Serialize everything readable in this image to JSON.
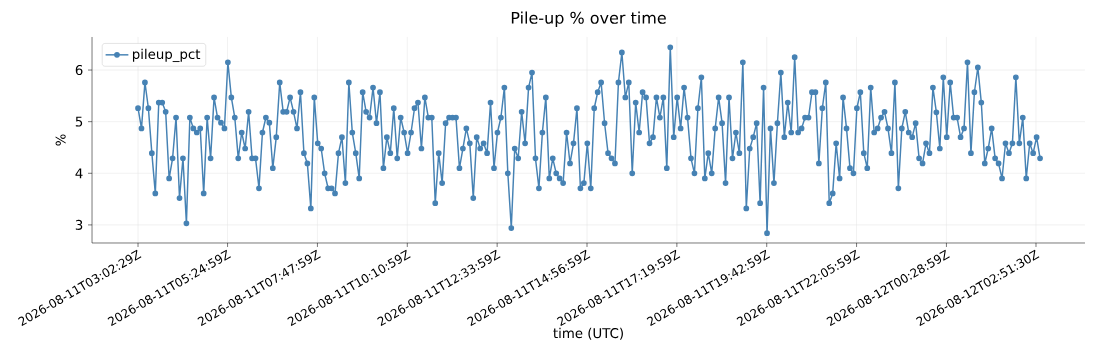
{
  "chart_data": {
    "type": "line",
    "title": "Pile-up % over time",
    "xlabel": "time (UTC)",
    "ylabel": "%",
    "x": [
      "2026-08-11T03:02:29",
      "2026-08-11T03:07:59",
      "2026-08-11T03:13:29",
      "2026-08-11T03:18:59",
      "2026-08-11T03:24:29",
      "2026-08-11T03:29:59",
      "2026-08-11T03:35:29",
      "2026-08-11T03:40:59",
      "2026-08-11T03:46:29",
      "2026-08-11T03:51:59",
      "2026-08-11T03:57:29",
      "2026-08-11T04:02:59",
      "2026-08-11T04:08:29",
      "2026-08-11T04:13:59",
      "2026-08-11T04:19:29",
      "2026-08-11T04:24:59",
      "2026-08-11T04:30:29",
      "2026-08-11T04:35:59",
      "2026-08-11T04:41:29",
      "2026-08-11T04:46:59",
      "2026-08-11T04:52:29",
      "2026-08-11T04:57:59",
      "2026-08-11T05:03:29",
      "2026-08-11T05:08:59",
      "2026-08-11T05:14:29",
      "2026-08-11T05:19:59",
      "2026-08-11T05:25:29",
      "2026-08-11T05:30:59",
      "2026-08-11T05:36:29",
      "2026-08-11T05:41:59",
      "2026-08-11T05:47:29",
      "2026-08-11T05:52:59",
      "2026-08-11T05:58:29",
      "2026-08-11T06:03:59",
      "2026-08-11T06:09:29",
      "2026-08-11T06:14:59",
      "2026-08-11T06:20:29",
      "2026-08-11T06:25:59",
      "2026-08-11T06:31:29",
      "2026-08-11T06:36:59",
      "2026-08-11T06:42:29",
      "2026-08-11T06:47:59",
      "2026-08-11T06:53:29",
      "2026-08-11T06:58:59",
      "2026-08-11T07:04:29",
      "2026-08-11T07:09:59",
      "2026-08-11T07:15:29",
      "2026-08-11T07:20:59",
      "2026-08-11T07:26:29",
      "2026-08-11T07:31:59",
      "2026-08-11T07:37:29",
      "2026-08-11T07:42:59",
      "2026-08-11T07:48:29",
      "2026-08-11T07:53:59",
      "2026-08-11T07:59:29",
      "2026-08-11T08:04:59",
      "2026-08-11T08:10:29",
      "2026-08-11T08:15:59",
      "2026-08-11T08:21:29",
      "2026-08-11T08:26:59",
      "2026-08-11T08:32:29",
      "2026-08-11T08:37:59",
      "2026-08-11T08:43:29",
      "2026-08-11T08:48:59",
      "2026-08-11T08:54:29",
      "2026-08-11T08:59:59",
      "2026-08-11T09:05:29",
      "2026-08-11T09:10:59",
      "2026-08-11T09:16:29",
      "2026-08-11T09:21:59",
      "2026-08-11T09:27:29",
      "2026-08-11T09:32:59",
      "2026-08-11T09:38:29",
      "2026-08-11T09:43:59",
      "2026-08-11T09:49:29",
      "2026-08-11T09:54:59",
      "2026-08-11T10:00:29",
      "2026-08-11T10:05:59",
      "2026-08-11T10:11:29",
      "2026-08-11T10:16:59",
      "2026-08-11T10:22:29",
      "2026-08-11T10:27:59",
      "2026-08-11T10:33:29",
      "2026-08-11T10:38:59",
      "2026-08-11T10:44:29",
      "2026-08-11T10:49:59",
      "2026-08-11T10:55:29",
      "2026-08-11T11:00:59",
      "2026-08-11T11:06:29",
      "2026-08-11T11:11:59",
      "2026-08-11T11:17:29",
      "2026-08-11T11:22:59",
      "2026-08-11T11:28:29",
      "2026-08-11T11:33:59",
      "2026-08-11T11:39:29",
      "2026-08-11T11:44:59",
      "2026-08-11T11:50:29",
      "2026-08-11T11:55:59",
      "2026-08-11T12:01:29",
      "2026-08-11T12:06:59",
      "2026-08-11T12:12:29",
      "2026-08-11T12:17:59",
      "2026-08-11T12:23:29",
      "2026-08-11T12:28:59",
      "2026-08-11T12:34:29",
      "2026-08-11T12:39:59",
      "2026-08-11T12:45:29",
      "2026-08-11T12:50:59",
      "2026-08-11T12:56:29",
      "2026-08-11T13:01:59",
      "2026-08-11T13:07:29",
      "2026-08-11T13:12:59",
      "2026-08-11T13:18:29",
      "2026-08-11T13:23:59",
      "2026-08-11T13:29:29",
      "2026-08-11T13:34:59",
      "2026-08-11T13:40:29",
      "2026-08-11T13:45:59",
      "2026-08-11T13:51:29",
      "2026-08-11T13:56:59",
      "2026-08-11T14:02:29",
      "2026-08-11T14:07:59",
      "2026-08-11T14:13:29",
      "2026-08-11T14:18:59",
      "2026-08-11T14:24:29",
      "2026-08-11T14:29:59",
      "2026-08-11T14:35:29",
      "2026-08-11T14:40:59",
      "2026-08-11T14:46:29",
      "2026-08-11T14:51:59",
      "2026-08-11T14:57:29",
      "2026-08-11T15:02:59",
      "2026-08-11T15:08:29",
      "2026-08-11T15:13:59",
      "2026-08-11T15:19:29",
      "2026-08-11T15:24:59",
      "2026-08-11T15:30:29",
      "2026-08-11T15:35:59",
      "2026-08-11T15:41:29",
      "2026-08-11T15:46:59",
      "2026-08-11T15:52:29",
      "2026-08-11T15:57:59",
      "2026-08-11T16:03:29",
      "2026-08-11T16:08:59",
      "2026-08-11T16:14:29",
      "2026-08-11T16:19:59",
      "2026-08-11T16:25:29",
      "2026-08-11T16:30:59",
      "2026-08-11T16:36:29",
      "2026-08-11T16:41:59",
      "2026-08-11T16:47:29",
      "2026-08-11T16:52:59",
      "2026-08-11T16:58:29",
      "2026-08-11T17:03:59",
      "2026-08-11T17:09:29",
      "2026-08-11T17:14:59",
      "2026-08-11T17:20:29",
      "2026-08-11T17:25:59",
      "2026-08-11T17:31:29",
      "2026-08-11T17:36:59",
      "2026-08-11T17:42:29",
      "2026-08-11T17:47:59",
      "2026-08-11T17:53:29",
      "2026-08-11T17:58:59",
      "2026-08-11T18:04:29",
      "2026-08-11T18:09:59",
      "2026-08-11T18:15:29",
      "2026-08-11T18:20:59",
      "2026-08-11T18:26:29",
      "2026-08-11T18:31:59",
      "2026-08-11T18:37:29",
      "2026-08-11T18:42:59",
      "2026-08-11T18:48:29",
      "2026-08-11T18:53:59",
      "2026-08-11T18:59:29",
      "2026-08-11T19:04:59",
      "2026-08-11T19:10:29",
      "2026-08-11T19:15:59",
      "2026-08-11T19:21:29",
      "2026-08-11T19:26:59",
      "2026-08-11T19:32:29",
      "2026-08-11T19:37:59",
      "2026-08-11T19:43:29",
      "2026-08-11T19:48:59",
      "2026-08-11T19:54:29",
      "2026-08-11T19:59:59",
      "2026-08-11T20:05:29",
      "2026-08-11T20:10:59",
      "2026-08-11T20:16:29",
      "2026-08-11T20:21:59",
      "2026-08-11T20:27:29",
      "2026-08-11T20:32:59",
      "2026-08-11T20:38:29",
      "2026-08-11T20:43:59",
      "2026-08-11T20:49:29",
      "2026-08-11T20:54:59",
      "2026-08-11T21:00:29",
      "2026-08-11T21:05:59",
      "2026-08-11T21:11:29",
      "2026-08-11T21:16:59",
      "2026-08-11T21:22:29",
      "2026-08-11T21:27:59",
      "2026-08-11T21:33:29",
      "2026-08-11T21:38:59",
      "2026-08-11T21:44:29",
      "2026-08-11T21:49:59",
      "2026-08-11T21:55:29",
      "2026-08-11T22:00:59",
      "2026-08-11T22:06:29",
      "2026-08-11T22:11:59",
      "2026-08-11T22:17:29",
      "2026-08-11T22:22:59",
      "2026-08-11T22:28:29",
      "2026-08-11T22:33:59",
      "2026-08-11T22:39:29",
      "2026-08-11T22:44:59",
      "2026-08-11T22:50:29",
      "2026-08-11T22:55:59",
      "2026-08-11T23:01:29",
      "2026-08-11T23:06:59",
      "2026-08-11T23:12:29",
      "2026-08-11T23:17:59",
      "2026-08-11T23:23:29",
      "2026-08-11T23:28:59",
      "2026-08-11T23:34:29",
      "2026-08-11T23:39:59",
      "2026-08-11T23:45:29",
      "2026-08-11T23:50:59",
      "2026-08-11T23:56:29",
      "2026-08-12T00:01:59",
      "2026-08-12T00:07:29",
      "2026-08-12T00:12:59",
      "2026-08-12T00:18:29",
      "2026-08-12T00:23:59",
      "2026-08-12T00:29:29",
      "2026-08-12T00:34:59",
      "2026-08-12T00:40:29",
      "2026-08-12T00:45:59",
      "2026-08-12T00:51:29",
      "2026-08-12T00:56:59",
      "2026-08-12T01:02:29",
      "2026-08-12T01:07:59",
      "2026-08-12T01:13:29",
      "2026-08-12T01:18:59",
      "2026-08-12T01:24:29",
      "2026-08-12T01:29:59",
      "2026-08-12T01:35:29",
      "2026-08-12T01:40:59",
      "2026-08-12T01:46:29",
      "2026-08-12T01:51:59",
      "2026-08-12T01:57:29",
      "2026-08-12T02:02:59",
      "2026-08-12T02:08:29",
      "2026-08-12T02:13:59",
      "2026-08-12T02:19:29",
      "2026-08-12T02:24:59",
      "2026-08-12T02:30:29",
      "2026-08-12T02:35:59",
      "2026-08-12T02:41:29",
      "2026-08-12T02:46:59",
      "2026-08-12T02:52:29",
      "2026-08-12T02:57:59"
    ],
    "series": [
      {
        "name": "pileup_pct",
        "color": "#4682b4",
        "values": [
          5.26,
          4.87,
          5.76,
          5.26,
          4.39,
          3.61,
          5.37,
          5.37,
          5.19,
          3.9,
          4.29,
          5.08,
          3.52,
          4.29,
          3.03,
          5.08,
          4.87,
          4.79,
          4.87,
          3.61,
          5.08,
          4.29,
          5.47,
          5.08,
          4.98,
          4.87,
          6.15,
          5.47,
          5.08,
          4.29,
          4.79,
          4.48,
          5.19,
          4.29,
          4.29,
          3.71,
          4.79,
          5.08,
          4.98,
          4.1,
          4.7,
          5.76,
          5.19,
          5.19,
          5.47,
          5.19,
          4.87,
          5.57,
          4.39,
          4.19,
          3.32,
          5.47,
          4.58,
          4.48,
          4.0,
          3.71,
          3.71,
          3.61,
          4.39,
          4.7,
          3.81,
          5.76,
          4.79,
          4.39,
          3.9,
          5.57,
          5.19,
          5.08,
          5.66,
          4.97,
          5.57,
          4.1,
          4.7,
          4.39,
          5.26,
          4.29,
          5.08,
          4.79,
          4.39,
          4.79,
          5.26,
          5.37,
          4.48,
          5.47,
          5.08,
          5.08,
          3.42,
          4.39,
          3.81,
          4.97,
          5.08,
          5.08,
          5.08,
          4.1,
          4.48,
          4.87,
          4.58,
          3.52,
          4.7,
          4.48,
          4.58,
          4.39,
          5.37,
          4.1,
          4.79,
          5.08,
          5.66,
          4.0,
          2.94,
          4.48,
          4.29,
          5.19,
          4.58,
          5.66,
          5.95,
          4.29,
          3.71,
          4.79,
          5.47,
          3.9,
          4.29,
          4.0,
          3.9,
          3.81,
          4.79,
          4.19,
          4.58,
          5.26,
          3.71,
          3.81,
          4.58,
          3.71,
          5.26,
          5.57,
          5.76,
          4.97,
          4.39,
          4.29,
          4.19,
          5.76,
          6.34,
          5.47,
          5.76,
          4.0,
          5.37,
          4.79,
          5.57,
          5.47,
          4.58,
          4.7,
          5.47,
          5.08,
          5.47,
          4.1,
          6.44,
          4.7,
          5.47,
          4.87,
          5.66,
          5.08,
          4.29,
          4.0,
          5.26,
          5.86,
          3.9,
          4.39,
          4.0,
          4.87,
          5.47,
          4.97,
          3.81,
          5.47,
          4.29,
          4.79,
          4.39,
          6.15,
          3.32,
          4.48,
          4.7,
          4.97,
          3.42,
          5.66,
          2.84,
          4.87,
          3.81,
          4.97,
          5.95,
          4.7,
          5.37,
          4.79,
          6.25,
          4.79,
          4.87,
          5.08,
          5.08,
          5.57,
          5.57,
          4.19,
          5.26,
          5.76,
          3.42,
          3.61,
          4.58,
          3.9,
          5.47,
          4.87,
          4.1,
          4.0,
          5.26,
          5.57,
          4.39,
          4.1,
          5.66,
          4.79,
          4.87,
          5.08,
          5.19,
          4.87,
          4.39,
          5.76,
          3.71,
          4.87,
          5.19,
          4.79,
          4.7,
          4.97,
          4.29,
          4.19,
          4.58,
          4.39,
          5.66,
          5.18,
          4.48,
          5.86,
          4.7,
          5.76,
          5.08,
          5.08,
          4.7,
          4.87,
          6.15,
          4.39,
          5.57,
          6.05,
          5.37,
          4.19,
          4.48,
          4.87,
          4.29,
          4.19,
          3.9,
          4.58,
          4.39,
          4.58,
          5.86,
          4.58,
          5.08,
          3.9,
          4.58,
          4.39,
          4.7,
          4.29
        ]
      }
    ],
    "xlim": [
      "2026-08-11T01:49:16",
      "2026-08-12T04:09:29"
    ],
    "ylim": [
      2.65,
      6.64
    ],
    "xticks": [
      {
        "value": "2026-08-11T03:02:29",
        "label": "2026-08-11T03:02:29Z"
      },
      {
        "value": "2026-08-11T05:24:59",
        "label": "2026-08-11T05:24:59Z"
      },
      {
        "value": "2026-08-11T07:47:59",
        "label": "2026-08-11T07:47:59Z"
      },
      {
        "value": "2026-08-11T10:10:59",
        "label": "2026-08-11T10:10:59Z"
      },
      {
        "value": "2026-08-11T12:33:59",
        "label": "2026-08-11T12:33:59Z"
      },
      {
        "value": "2026-08-11T14:56:59",
        "label": "2026-08-11T14:56:59Z"
      },
      {
        "value": "2026-08-11T17:19:59",
        "label": "2026-08-11T17:19:59Z"
      },
      {
        "value": "2026-08-11T19:42:59",
        "label": "2026-08-11T19:42:59Z"
      },
      {
        "value": "2026-08-11T22:05:59",
        "label": "2026-08-11T22:05:59Z"
      },
      {
        "value": "2026-08-12T00:28:59",
        "label": "2026-08-12T00:28:59Z"
      },
      {
        "value": "2026-08-12T02:51:30",
        "label": "2026-08-12T02:51:30Z"
      }
    ],
    "yticks": [
      3,
      4,
      5,
      6
    ],
    "grid": true,
    "legend": "top left",
    "marker": "circle",
    "line_style": "solid"
  }
}
